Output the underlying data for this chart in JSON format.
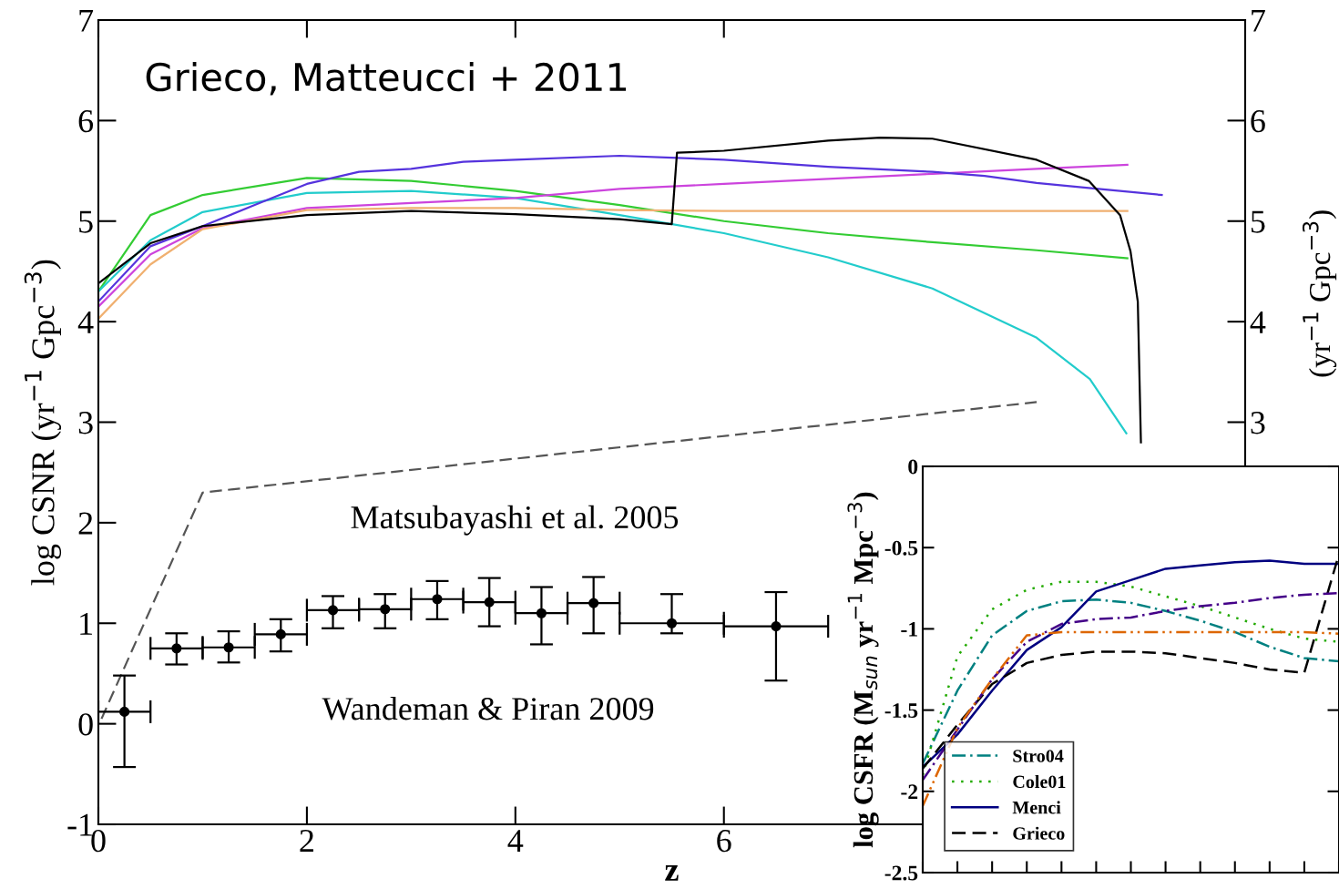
{
  "chart_data": [
    {
      "type": "line",
      "xlabel": "z",
      "ylabel": "log CSNR (yr$^{−1}$ Gpc$^{−3}$)",
      "y2label": "(yr$^{−1}$ Gpc$^{−3}$)",
      "xlim": [
        0,
        11
      ],
      "xticks": [
        0,
        2,
        4,
        6
      ],
      "ylim": [
        -1,
        7
      ],
      "yticks": [
        {
          "value": -1,
          "label": "-1"
        },
        0,
        1,
        2,
        3,
        4,
        5,
        6,
        7
      ],
      "y2lim": [
        -1,
        7
      ],
      "y2ticks": [
        3,
        4,
        5,
        6,
        7
      ],
      "grid": false,
      "legend": false,
      "annotations": [
        "Grieco, Matteucci + 2011",
        "Matsubayashi et al. 2005",
        "Wandeman & Piran 2009"
      ],
      "series": [
        {
          "color": "#33cc33",
          "line_style": "solid",
          "x": [
            0,
            0.5,
            1,
            2,
            3,
            4,
            5,
            6,
            7,
            8,
            9,
            9.87
          ],
          "values": [
            4.3,
            5.06,
            5.26,
            5.43,
            5.4,
            5.3,
            5.16,
            5.0,
            4.88,
            4.79,
            4.71,
            4.63
          ]
        },
        {
          "color": "#22cccc",
          "line_style": "solid",
          "x": [
            0,
            0.5,
            1,
            2,
            3,
            4,
            5,
            6,
            7,
            8,
            9,
            9.51,
            9.86
          ],
          "values": [
            4.3,
            4.81,
            5.09,
            5.28,
            5.3,
            5.23,
            5.06,
            4.88,
            4.64,
            4.33,
            3.84,
            3.43,
            2.89
          ]
        },
        {
          "color": "#cc44dd",
          "line_style": "solid",
          "x": [
            0,
            0.5,
            1,
            2,
            3,
            4,
            5,
            6,
            7,
            8,
            9,
            9.87
          ],
          "values": [
            4.15,
            4.67,
            4.93,
            5.13,
            5.18,
            5.23,
            5.32,
            5.37,
            5.42,
            5.47,
            5.52,
            5.56
          ]
        },
        {
          "color": "#f0b070",
          "line_style": "solid",
          "x": [
            0,
            0.5,
            1,
            2,
            3,
            4,
            5,
            6,
            7,
            8,
            9,
            9.87
          ],
          "values": [
            4.03,
            4.57,
            4.92,
            5.11,
            5.13,
            5.13,
            5.11,
            5.1,
            5.1,
            5.1,
            5.1,
            5.1
          ]
        },
        {
          "color": "#5533dd",
          "line_style": "solid",
          "x": [
            0,
            0.5,
            1,
            1.5,
            2,
            2.5,
            3,
            3.5,
            4,
            5,
            5.5,
            6,
            7,
            8,
            8.5,
            9,
            9.5,
            10.2
          ],
          "values": [
            4.2,
            4.75,
            4.95,
            5.16,
            5.37,
            5.49,
            5.52,
            5.59,
            5.61,
            5.65,
            5.63,
            5.61,
            5.54,
            5.49,
            5.45,
            5.38,
            5.33,
            5.26
          ]
        },
        {
          "color": "#000000",
          "line_style": "solid",
          "x": [
            0,
            0.5,
            1,
            2,
            3,
            4,
            5,
            5.5,
            5.55,
            6,
            7,
            7.5,
            8,
            9,
            9.5,
            9.8,
            9.9,
            9.97,
            10.0
          ],
          "values": [
            4.38,
            4.78,
            4.95,
            5.06,
            5.1,
            5.07,
            5.02,
            4.97,
            5.68,
            5.7,
            5.8,
            5.83,
            5.82,
            5.61,
            5.4,
            5.06,
            4.7,
            4.2,
            2.8
          ]
        },
        {
          "color": "#555555",
          "line_style": "dashed",
          "x": [
            0.03,
            1.0,
            9.0
          ],
          "values": [
            0.05,
            2.3,
            3.2
          ]
        },
        {
          "type": "scatter",
          "color": "#000000",
          "marker": "circle",
          "x": [
            0.25,
            0.75,
            1.25,
            1.75,
            2.25,
            2.75,
            3.25,
            3.75,
            4.25,
            4.75,
            5.5,
            6.5
          ],
          "values": [
            0.12,
            0.75,
            0.76,
            0.89,
            1.13,
            1.14,
            1.24,
            1.21,
            1.1,
            1.2,
            1.0,
            0.97
          ],
          "errors": [
            [
              -0.43,
              0.48
            ],
            [
              0.59,
              0.9
            ],
            [
              0.61,
              0.92
            ],
            [
              0.72,
              1.04
            ],
            [
              0.95,
              1.27
            ],
            [
              0.95,
              1.29
            ],
            [
              1.04,
              1.42
            ],
            [
              0.97,
              1.45
            ],
            [
              0.79,
              1.36
            ],
            [
              0.9,
              1.46
            ],
            [
              0.9,
              1.29
            ],
            [
              0.43,
              1.31
            ]
          ],
          "xerrors": [
            0.25,
            0.25,
            0.25,
            0.25,
            0.25,
            0.25,
            0.25,
            0.25,
            0.25,
            0.25,
            0.5,
            0.5
          ]
        }
      ]
    },
    {
      "type": "line",
      "ylabel": "log CSFR (M$_{sun}$ yr$^{−1}$ Mpc$^{−3}$)",
      "ylim": [
        -2.5,
        0
      ],
      "yticks": [
        0,
        {
          "value": -0.5,
          "label": "-0.5"
        },
        {
          "value": -1,
          "label": "-1"
        },
        {
          "value": -1.5,
          "label": "-1.5"
        },
        {
          "value": -2,
          "label": "-2"
        },
        {
          "value": -2.5,
          "label": "-2.5"
        }
      ],
      "tick_labels": "y",
      "grid": false,
      "legend": "bottom left",
      "categories": [
        null,
        null,
        null,
        null,
        null,
        null,
        null,
        null,
        null,
        null,
        null,
        null,
        null
      ],
      "series": [
        {
          "name": "Stro04",
          "color": "#008080",
          "line_style": "dashdot",
          "values": [
            -1.83,
            -1.38,
            -1.04,
            -0.89,
            -0.83,
            -0.82,
            -0.84,
            -0.89,
            -0.95,
            -1.02,
            -1.11,
            -1.18,
            -1.2
          ]
        },
        {
          "name": "Cole01",
          "color": "#22aa00",
          "line_style": "dotted",
          "values": [
            -1.9,
            -1.17,
            -0.88,
            -0.76,
            -0.71,
            -0.71,
            -0.74,
            -0.8,
            -0.86,
            -0.93,
            -1.0,
            -1.06,
            -1.08
          ]
        },
        {
          "name": "Menci",
          "color": "#000080",
          "line_style": "solid",
          "values": [
            -1.85,
            -1.65,
            -1.38,
            -1.13,
            -0.99,
            -0.77,
            -0.7,
            -0.63,
            -0.61,
            -0.59,
            -0.58,
            -0.6,
            -0.6
          ]
        },
        {
          "name": "Grieco",
          "color": "#000000",
          "line_style": "dashed",
          "values": [
            -1.86,
            -1.59,
            -1.34,
            -1.21,
            -1.16,
            -1.14,
            -1.14,
            -1.15,
            -1.18,
            -1.21,
            -1.25,
            -1.27,
            -0.54
          ]
        },
        {
          "color": "#440088",
          "line_style": "dashdot",
          "values": [
            -1.93,
            -1.62,
            -1.31,
            -1.08,
            -0.97,
            -0.94,
            -0.93,
            -0.89,
            -0.86,
            -0.84,
            -0.81,
            -0.79,
            -0.78
          ]
        },
        {
          "color": "#dd6600",
          "line_style": "dashdotdot",
          "values": [
            -2.09,
            -1.61,
            -1.31,
            -1.04,
            -1.02,
            -1.02,
            -1.02,
            -1.02,
            -1.02,
            -1.02,
            -1.02,
            -1.02,
            -1.03
          ]
        }
      ]
    }
  ]
}
